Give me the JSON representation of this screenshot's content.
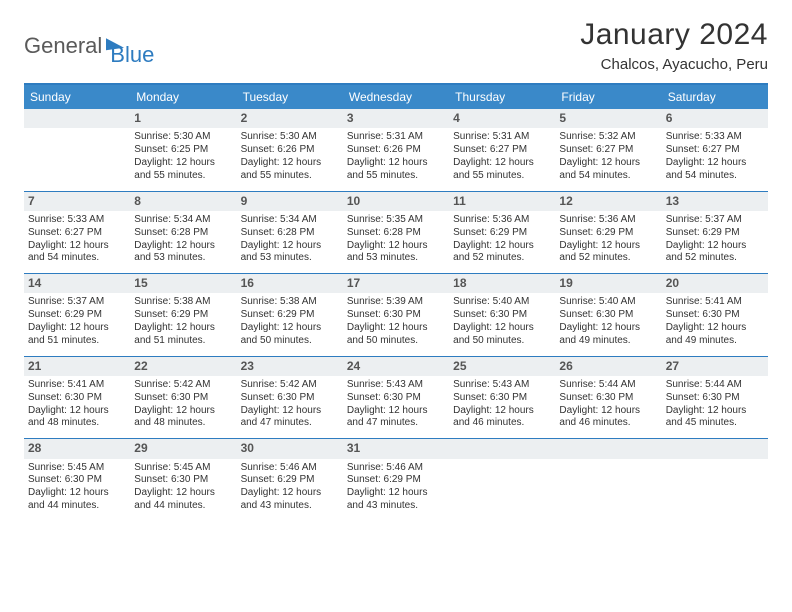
{
  "logo": {
    "part1": "General",
    "part2": "Blue"
  },
  "title": "January 2024",
  "location": "Chalcos, Ayacucho, Peru",
  "colors": {
    "header_bg": "#3a89c9",
    "rule": "#2e7cc0",
    "daynum_bg": "#eceff1",
    "text": "#333333"
  },
  "days_of_week": [
    "Sunday",
    "Monday",
    "Tuesday",
    "Wednesday",
    "Thursday",
    "Friday",
    "Saturday"
  ],
  "calendar": {
    "start_blank": 0,
    "weeks": [
      [
        {
          "n": "",
          "blank": true
        },
        {
          "n": "1",
          "sunrise": "5:30 AM",
          "sunset": "6:25 PM",
          "daylight": "12 hours and 55 minutes."
        },
        {
          "n": "2",
          "sunrise": "5:30 AM",
          "sunset": "6:26 PM",
          "daylight": "12 hours and 55 minutes."
        },
        {
          "n": "3",
          "sunrise": "5:31 AM",
          "sunset": "6:26 PM",
          "daylight": "12 hours and 55 minutes."
        },
        {
          "n": "4",
          "sunrise": "5:31 AM",
          "sunset": "6:27 PM",
          "daylight": "12 hours and 55 minutes."
        },
        {
          "n": "5",
          "sunrise": "5:32 AM",
          "sunset": "6:27 PM",
          "daylight": "12 hours and 54 minutes."
        },
        {
          "n": "6",
          "sunrise": "5:33 AM",
          "sunset": "6:27 PM",
          "daylight": "12 hours and 54 minutes."
        }
      ],
      [
        {
          "n": "7",
          "sunrise": "5:33 AM",
          "sunset": "6:27 PM",
          "daylight": "12 hours and 54 minutes."
        },
        {
          "n": "8",
          "sunrise": "5:34 AM",
          "sunset": "6:28 PM",
          "daylight": "12 hours and 53 minutes."
        },
        {
          "n": "9",
          "sunrise": "5:34 AM",
          "sunset": "6:28 PM",
          "daylight": "12 hours and 53 minutes."
        },
        {
          "n": "10",
          "sunrise": "5:35 AM",
          "sunset": "6:28 PM",
          "daylight": "12 hours and 53 minutes."
        },
        {
          "n": "11",
          "sunrise": "5:36 AM",
          "sunset": "6:29 PM",
          "daylight": "12 hours and 52 minutes."
        },
        {
          "n": "12",
          "sunrise": "5:36 AM",
          "sunset": "6:29 PM",
          "daylight": "12 hours and 52 minutes."
        },
        {
          "n": "13",
          "sunrise": "5:37 AM",
          "sunset": "6:29 PM",
          "daylight": "12 hours and 52 minutes."
        }
      ],
      [
        {
          "n": "14",
          "sunrise": "5:37 AM",
          "sunset": "6:29 PM",
          "daylight": "12 hours and 51 minutes."
        },
        {
          "n": "15",
          "sunrise": "5:38 AM",
          "sunset": "6:29 PM",
          "daylight": "12 hours and 51 minutes."
        },
        {
          "n": "16",
          "sunrise": "5:38 AM",
          "sunset": "6:29 PM",
          "daylight": "12 hours and 50 minutes."
        },
        {
          "n": "17",
          "sunrise": "5:39 AM",
          "sunset": "6:30 PM",
          "daylight": "12 hours and 50 minutes."
        },
        {
          "n": "18",
          "sunrise": "5:40 AM",
          "sunset": "6:30 PM",
          "daylight": "12 hours and 50 minutes."
        },
        {
          "n": "19",
          "sunrise": "5:40 AM",
          "sunset": "6:30 PM",
          "daylight": "12 hours and 49 minutes."
        },
        {
          "n": "20",
          "sunrise": "5:41 AM",
          "sunset": "6:30 PM",
          "daylight": "12 hours and 49 minutes."
        }
      ],
      [
        {
          "n": "21",
          "sunrise": "5:41 AM",
          "sunset": "6:30 PM",
          "daylight": "12 hours and 48 minutes."
        },
        {
          "n": "22",
          "sunrise": "5:42 AM",
          "sunset": "6:30 PM",
          "daylight": "12 hours and 48 minutes."
        },
        {
          "n": "23",
          "sunrise": "5:42 AM",
          "sunset": "6:30 PM",
          "daylight": "12 hours and 47 minutes."
        },
        {
          "n": "24",
          "sunrise": "5:43 AM",
          "sunset": "6:30 PM",
          "daylight": "12 hours and 47 minutes."
        },
        {
          "n": "25",
          "sunrise": "5:43 AM",
          "sunset": "6:30 PM",
          "daylight": "12 hours and 46 minutes."
        },
        {
          "n": "26",
          "sunrise": "5:44 AM",
          "sunset": "6:30 PM",
          "daylight": "12 hours and 46 minutes."
        },
        {
          "n": "27",
          "sunrise": "5:44 AM",
          "sunset": "6:30 PM",
          "daylight": "12 hours and 45 minutes."
        }
      ],
      [
        {
          "n": "28",
          "sunrise": "5:45 AM",
          "sunset": "6:30 PM",
          "daylight": "12 hours and 44 minutes."
        },
        {
          "n": "29",
          "sunrise": "5:45 AM",
          "sunset": "6:30 PM",
          "daylight": "12 hours and 44 minutes."
        },
        {
          "n": "30",
          "sunrise": "5:46 AM",
          "sunset": "6:29 PM",
          "daylight": "12 hours and 43 minutes."
        },
        {
          "n": "31",
          "sunrise": "5:46 AM",
          "sunset": "6:29 PM",
          "daylight": "12 hours and 43 minutes."
        },
        {
          "n": "",
          "blank": true
        },
        {
          "n": "",
          "blank": true
        },
        {
          "n": "",
          "blank": true
        }
      ]
    ]
  },
  "labels": {
    "sunrise": "Sunrise:",
    "sunset": "Sunset:",
    "daylight": "Daylight:"
  }
}
